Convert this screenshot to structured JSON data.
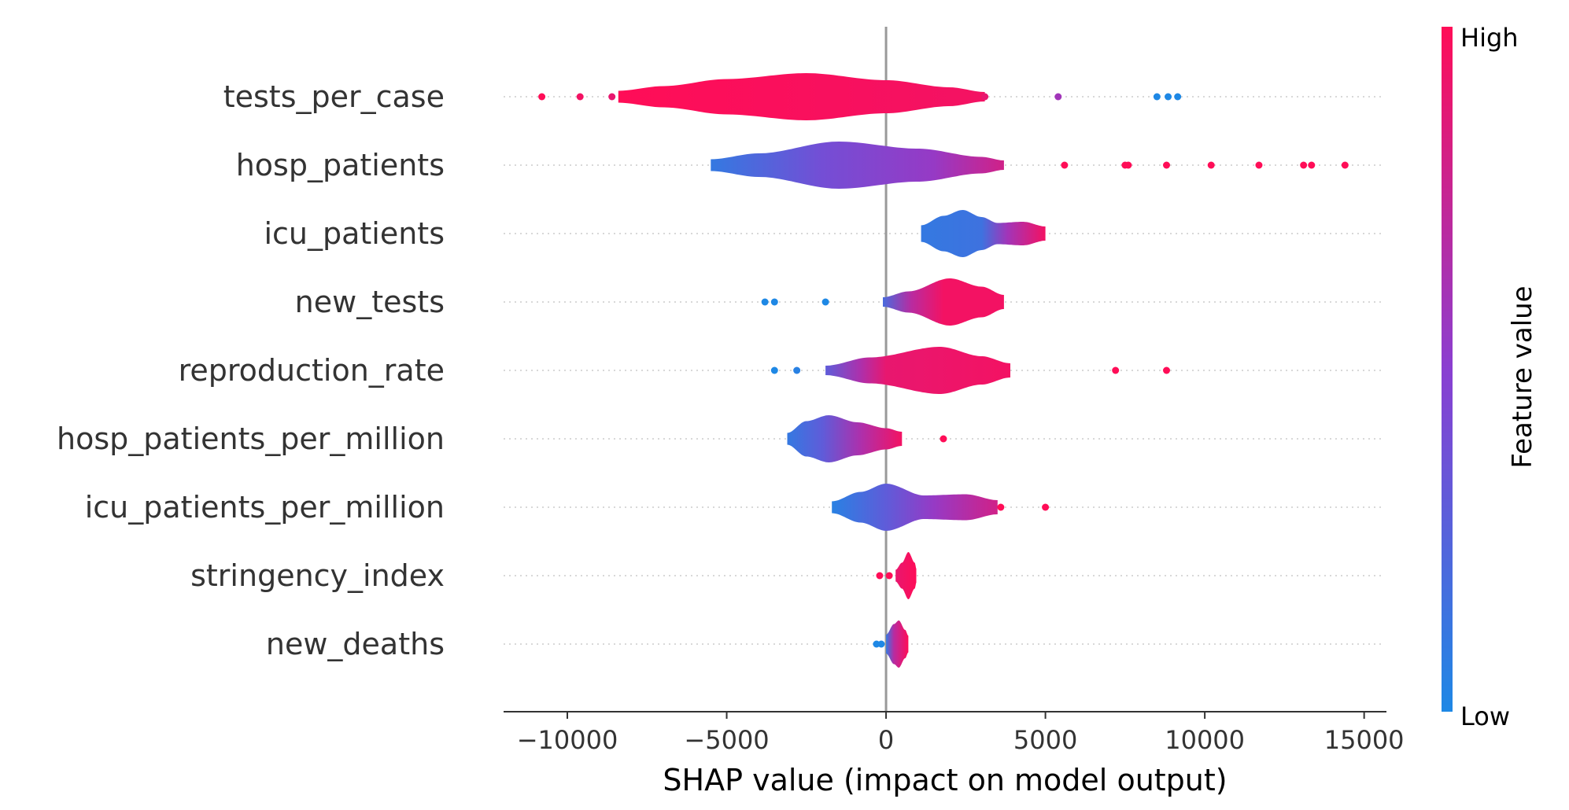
{
  "chart_data": {
    "type": "violin",
    "title": "",
    "xlabel": "SHAP value (impact on model output)",
    "ylabel": "",
    "xlim": [
      -12000,
      15700
    ],
    "xticks": [
      -10000,
      -5000,
      0,
      5000,
      10000,
      15000
    ],
    "xtick_labels": [
      "−10000",
      "−5000",
      "0",
      "5000",
      "10000",
      "15000"
    ],
    "zero_line": 0,
    "colorbar": {
      "label": "Feature value",
      "high_label": "High",
      "low_label": "Low",
      "high_color": "#ff0d57",
      "low_color": "#1e88e5",
      "mid_color": "#8a3fd1"
    },
    "features": [
      {
        "name": "tests_per_case",
        "violin_range": [
          -8400,
          3100
        ],
        "profile": [
          [
            -8400,
            0.25
          ],
          [
            -7000,
            0.45
          ],
          [
            -5000,
            0.75
          ],
          [
            -2500,
            1.0
          ],
          [
            0,
            0.7
          ],
          [
            2000,
            0.4
          ],
          [
            3100,
            0.2
          ]
        ],
        "color_stops": [
          [
            -8400,
            1.0
          ],
          [
            3100,
            0.95
          ]
        ],
        "outliers": [
          [
            -10800,
            1.0
          ],
          [
            -9600,
            0.95
          ],
          [
            -8600,
            0.9
          ],
          [
            3100,
            0.9
          ],
          [
            5400,
            0.6
          ],
          [
            8500,
            0.0
          ],
          [
            8850,
            0.0
          ],
          [
            9150,
            0.0
          ]
        ]
      },
      {
        "name": "hosp_patients",
        "violin_range": [
          -5500,
          3700
        ],
        "profile": [
          [
            -5500,
            0.25
          ],
          [
            -4000,
            0.5
          ],
          [
            -1500,
            1.0
          ],
          [
            1000,
            0.7
          ],
          [
            3000,
            0.35
          ],
          [
            3700,
            0.2
          ]
        ],
        "color_stops": [
          [
            -5500,
            0.1
          ],
          [
            -2000,
            0.4
          ],
          [
            1500,
            0.55
          ],
          [
            3700,
            0.8
          ]
        ],
        "outliers": [
          [
            5600,
            1.0
          ],
          [
            7500,
            1.0
          ],
          [
            7600,
            1.0
          ],
          [
            8800,
            1.0
          ],
          [
            10200,
            1.0
          ],
          [
            11700,
            1.0
          ],
          [
            13100,
            1.0
          ],
          [
            13350,
            1.0
          ],
          [
            14400,
            1.0
          ]
        ]
      },
      {
        "name": "icu_patients",
        "violin_range": [
          1100,
          5000
        ],
        "profile": [
          [
            1100,
            0.35
          ],
          [
            1800,
            0.75
          ],
          [
            2400,
            1.0
          ],
          [
            3000,
            0.7
          ],
          [
            3500,
            0.45
          ],
          [
            4300,
            0.5
          ],
          [
            5000,
            0.3
          ]
        ],
        "color_stops": [
          [
            1100,
            0.1
          ],
          [
            3000,
            0.15
          ],
          [
            3800,
            0.6
          ],
          [
            5000,
            0.95
          ]
        ],
        "outliers": []
      },
      {
        "name": "new_tests",
        "violin_range": [
          -100,
          3700
        ],
        "profile": [
          [
            -100,
            0.2
          ],
          [
            700,
            0.45
          ],
          [
            2000,
            1.0
          ],
          [
            3000,
            0.65
          ],
          [
            3700,
            0.3
          ]
        ],
        "color_stops": [
          [
            -100,
            0.2
          ],
          [
            800,
            0.7
          ],
          [
            1800,
            0.95
          ],
          [
            3700,
            0.95
          ]
        ],
        "outliers": [
          [
            -3800,
            0.0
          ],
          [
            -3500,
            0.0
          ],
          [
            -1900,
            0.0
          ]
        ]
      },
      {
        "name": "reproduction_rate",
        "violin_range": [
          -1900,
          3900
        ],
        "profile": [
          [
            -1900,
            0.2
          ],
          [
            -500,
            0.55
          ],
          [
            1700,
            1.0
          ],
          [
            3000,
            0.6
          ],
          [
            3900,
            0.3
          ]
        ],
        "color_stops": [
          [
            -1900,
            0.3
          ],
          [
            -800,
            0.65
          ],
          [
            0,
            0.9
          ],
          [
            3900,
            0.95
          ]
        ],
        "outliers": [
          [
            -3500,
            0.0
          ],
          [
            -2800,
            0.05
          ],
          [
            7200,
            1.0
          ],
          [
            8800,
            1.0
          ]
        ]
      },
      {
        "name": "hosp_patients_per_million",
        "violin_range": [
          -3100,
          500
        ],
        "profile": [
          [
            -3100,
            0.25
          ],
          [
            -2500,
            0.75
          ],
          [
            -1800,
            1.0
          ],
          [
            -900,
            0.7
          ],
          [
            0,
            0.45
          ],
          [
            500,
            0.3
          ]
        ],
        "color_stops": [
          [
            -3100,
            0.1
          ],
          [
            -2000,
            0.3
          ],
          [
            -800,
            0.65
          ],
          [
            500,
            0.95
          ]
        ],
        "outliers": [
          [
            1800,
            1.0
          ]
        ]
      },
      {
        "name": "icu_patients_per_million",
        "violin_range": [
          -1700,
          3500
        ],
        "profile": [
          [
            -1700,
            0.25
          ],
          [
            -800,
            0.65
          ],
          [
            0,
            1.0
          ],
          [
            1200,
            0.5
          ],
          [
            2500,
            0.55
          ],
          [
            3500,
            0.3
          ]
        ],
        "color_stops": [
          [
            -1700,
            0.05
          ],
          [
            0,
            0.3
          ],
          [
            1500,
            0.55
          ],
          [
            3500,
            0.8
          ]
        ],
        "outliers": [
          [
            3600,
            1.0
          ],
          [
            5000,
            1.0
          ]
        ]
      },
      {
        "name": "stringency_index",
        "violin_range": [
          300,
          950
        ],
        "profile": [
          [
            300,
            0.25
          ],
          [
            500,
            0.55
          ],
          [
            700,
            1.0
          ],
          [
            900,
            0.55
          ],
          [
            950,
            0.3
          ]
        ],
        "color_stops": [
          [
            300,
            0.9
          ],
          [
            950,
            1.0
          ]
        ],
        "outliers": [
          [
            -200,
            1.0
          ],
          [
            100,
            1.0
          ]
        ]
      },
      {
        "name": "new_deaths",
        "violin_range": [
          0,
          700
        ],
        "profile": [
          [
            0,
            0.4
          ],
          [
            250,
            0.85
          ],
          [
            400,
            1.0
          ],
          [
            600,
            0.6
          ],
          [
            700,
            0.35
          ]
        ],
        "color_stops": [
          [
            0,
            0.1
          ],
          [
            250,
            0.7
          ],
          [
            700,
            1.0
          ]
        ],
        "outliers": [
          [
            -300,
            0.0
          ],
          [
            -150,
            0.0
          ]
        ]
      }
    ]
  }
}
